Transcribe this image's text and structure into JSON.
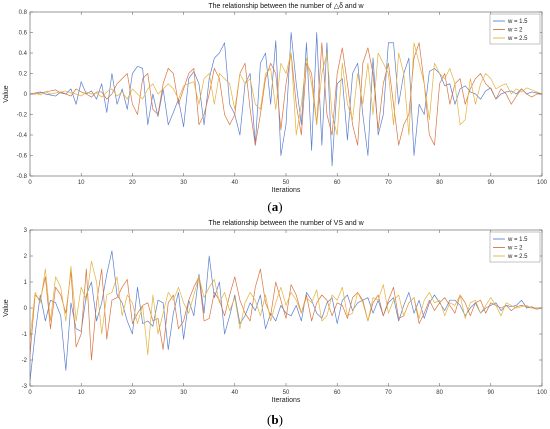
{
  "chart_data": [
    {
      "type": "line",
      "title": "The relationship between the number of △δ and w",
      "xlabel": "Iterations",
      "ylabel": "Value",
      "caption_letter": "a",
      "xlim": [
        0,
        100
      ],
      "ylim": [
        -0.8,
        0.8
      ],
      "xticks": [
        0,
        10,
        20,
        30,
        40,
        50,
        60,
        70,
        80,
        90,
        100
      ],
      "yticks": [
        -0.8,
        -0.6,
        -0.4,
        -0.2,
        0,
        0.2,
        0.4,
        0.6,
        0.8
      ],
      "grid": false,
      "legend_position": "top-right",
      "series": [
        {
          "name": "w = 1.5",
          "color": "#5b7fd1",
          "values": [
            0,
            0.01,
            0.02,
            0,
            -0.01,
            -0.02,
            0.02,
            0,
            0.05,
            -0.1,
            0.12,
            0,
            0.03,
            -0.05,
            0.1,
            -0.18,
            0.2,
            -0.1,
            0.05,
            -0.15,
            0.2,
            0.27,
            0.25,
            -0.3,
            0,
            -0.22,
            0.05,
            -0.3,
            -0.18,
            -0.05,
            -0.32,
            0.15,
            0.22,
            0.1,
            -0.3,
            0.15,
            0.35,
            0.4,
            0.5,
            -0.1,
            -0.2,
            -0.4,
            0.1,
            0.2,
            -0.5,
            0.3,
            0.4,
            -0.1,
            0.52,
            -0.6,
            -0.3,
            0.6,
            0.1,
            -0.3,
            0.5,
            -0.55,
            0.6,
            -0.5,
            0.5,
            -0.7,
            0.1,
            0.15,
            -0.45,
            0.2,
            0.3,
            -0.2,
            -0.6,
            0.35,
            -0.4,
            -0.2,
            0.5,
            0.5,
            -0.1,
            0.2,
            0.35,
            -0.6,
            -0.1,
            -0.2,
            0.22,
            0.25,
            0.2,
            0.08,
            0.1,
            -0.1,
            0.05,
            0.08,
            0.02,
            0,
            -0.05,
            0.03,
            0.06,
            -0.05,
            0,
            0.02,
            0.03,
            0,
            0.05,
            0,
            0.02,
            0.01,
            0
          ]
        },
        {
          "name": "w = 2",
          "color": "#d9733f",
          "values": [
            0,
            0,
            0.01,
            0.02,
            0.03,
            0.04,
            0.01,
            0,
            -0.02,
            0.05,
            0.02,
            0,
            -0.03,
            0.02,
            0.02,
            -0.05,
            0,
            0.1,
            0.15,
            0.2,
            -0.1,
            -0.2,
            0.15,
            0.2,
            -0.15,
            -0.2,
            0.1,
            0.25,
            0.2,
            -0.1,
            0.05,
            0.2,
            0.25,
            -0.3,
            -0.2,
            0,
            0.25,
            0.15,
            -0.2,
            -0.3,
            -0.2,
            0.2,
            0.3,
            -0.15,
            -0.5,
            -0.2,
            0.15,
            0.3,
            0.2,
            -0.35,
            0.1,
            0.4,
            -0.1,
            -0.4,
            0.3,
            0.2,
            -0.3,
            0.5,
            -0.2,
            -0.4,
            0.2,
            0.45,
            0.1,
            -0.3,
            -0.5,
            0.3,
            0.45,
            0.2,
            -0.35,
            0.1,
            0.3,
            -0.1,
            -0.5,
            -0.3,
            -0.2,
            0.35,
            0.5,
            0.1,
            -0.4,
            -0.5,
            0.1,
            0.2,
            -0.1,
            0.1,
            0.15,
            -0.1,
            0.05,
            0.15,
            0.2,
            0.1,
            0.05,
            -0.05,
            0.05,
            0,
            -0.1,
            -0.02,
            0.05,
            0,
            -0.03,
            0,
            0
          ]
        },
        {
          "name": "w = 2.5",
          "color": "#e3b23c",
          "values": [
            0,
            0.01,
            -0.01,
            0.02,
            0,
            0.01,
            0.02,
            0.03,
            0.01,
            0,
            -0.02,
            0.02,
            0,
            0.01,
            -0.03,
            0.02,
            0.05,
            -0.02,
            0.02,
            -0.05,
            0.05,
            0,
            -0.05,
            0.05,
            0.1,
            0,
            0.05,
            0.1,
            0.05,
            -0.05,
            0.08,
            0.1,
            0.12,
            -0.1,
            0.15,
            0.2,
            -0.1,
            0.2,
            0.15,
            0.1,
            -0.15,
            0.2,
            0.1,
            0.15,
            -0.1,
            -0.15,
            0.2,
            0.25,
            -0.15,
            0.3,
            0.2,
            0.4,
            -0.4,
            -0.1,
            0.35,
            0.1,
            -0.3,
            0.2,
            0.4,
            -0.2,
            -0.4,
            0.3,
            -0.1,
            -0.25,
            0.2,
            -0.1,
            0.3,
            -0.2,
            0.4,
            0.3,
            0.2,
            -0.3,
            0.4,
            0.2,
            -0.4,
            0.5,
            0.3,
            0.1,
            -0.25,
            0.3,
            0.2,
            0.15,
            0.25,
            0.1,
            -0.3,
            -0.25,
            0.15,
            -0.1,
            0.1,
            0.2,
            0.15,
            0.05,
            0.08,
            0.1,
            0,
            0.05,
            0.02,
            0.06,
            0.04,
            0.02,
            0
          ]
        }
      ]
    },
    {
      "type": "line",
      "title": "The relationship between the number of VS and w",
      "xlabel": "Iterations",
      "ylabel": "Value",
      "caption_letter": "b",
      "xlim": [
        0,
        100
      ],
      "ylim": [
        -3,
        3
      ],
      "xticks": [
        0,
        10,
        20,
        30,
        40,
        50,
        60,
        70,
        80,
        90,
        100
      ],
      "yticks": [
        -3,
        -2,
        -1,
        0,
        1,
        2,
        3
      ],
      "grid": false,
      "legend_position": "top-right",
      "series": [
        {
          "name": "w = 1.5",
          "color": "#5b7fd1",
          "values": [
            -2.8,
            -1,
            0.5,
            -0.5,
            0.3,
            0.2,
            -0.3,
            -2.4,
            0.2,
            -0.8,
            -0.9,
            0.5,
            1,
            -0.5,
            0.2,
            1.3,
            2.2,
            0.5,
            0.2,
            -0.5,
            -1,
            0.8,
            -0.6,
            -0.5,
            -0.7,
            0.3,
            0.2,
            -1.6,
            -0.2,
            0.6,
            -1.2,
            0.3,
            -0.3,
            1.3,
            -0.2,
            2,
            0.4,
            1,
            -1,
            -0.3,
            0.5,
            -0.6,
            -0.3,
            0.2,
            -0.1,
            0.5,
            -0.8,
            -0.2,
            -0.5,
            0.1,
            -0.2,
            -0.3,
            0.1,
            -0.5,
            0.6,
            0.3,
            -0.2,
            -0.4,
            0.2,
            0.4,
            -0.6,
            0.3,
            0.5,
            -0.1,
            0.2,
            0.3,
            0.4,
            -0.2,
            0.3,
            -0.3,
            0.2,
            0.4,
            -0.5,
            0.1,
            0.6,
            -0.2,
            0.3,
            -0.4,
            0.2,
            0.5,
            0.2,
            -0.1,
            0.3,
            0.3,
            0.1,
            -0.3,
            0,
            0.2,
            -0.2,
            0,
            0.1,
            0.2,
            -0.1,
            0.1,
            0.05,
            0.1,
            0.3,
            0,
            0.05,
            -0.05,
            0
          ]
        },
        {
          "name": "w = 2",
          "color": "#d9733f",
          "values": [
            -1.8,
            0.5,
            0.3,
            1.2,
            -0.8,
            0.8,
            0.5,
            -0.2,
            1.4,
            -1.5,
            -1,
            1.5,
            -2,
            0.2,
            1.5,
            -1.2,
            0.3,
            0.4,
            0.8,
            1.1,
            -0.6,
            -0.2,
            0.1,
            0.2,
            -0.5,
            -0.4,
            -1.6,
            0.2,
            0.5,
            -0.8,
            -0.5,
            0.3,
            0.8,
            1.2,
            -0.5,
            -0.4,
            0.6,
            0.3,
            -0.3,
            0.5,
            1.2,
            0.3,
            -0.2,
            -0.5,
            0.8,
            1.5,
            0.2,
            -0.3,
            1,
            0.3,
            -0.4,
            0.9,
            0.5,
            -0.2,
            0.5,
            -0.5,
            0.2,
            0.5,
            0.3,
            -0.3,
            0.2,
            0.1,
            -0.4,
            0.4,
            0.6,
            0.3,
            -0.5,
            0.2,
            0.5,
            -0.3,
            0.3,
            0.8,
            -0.4,
            -0.3,
            0.2,
            0.4,
            -0.6,
            -0.2,
            0.3,
            -0.1,
            0.2,
            0.4,
            0.1,
            -0.2,
            0.5,
            0.2,
            -0.3,
            0.2,
            0.3,
            -0.2,
            0.2,
            0.1,
            0,
            0.1,
            -0.1,
            0.05,
            0.1,
            0.05,
            0,
            0,
            0
          ]
        },
        {
          "name": "w = 2.5",
          "color": "#e3b23c",
          "values": [
            -1.2,
            0.6,
            0.2,
            1.5,
            -0.5,
            1.2,
            0.8,
            -0.5,
            1.6,
            -0.5,
            0.8,
            0.3,
            1.8,
            1,
            -1,
            0.5,
            0.6,
            1.2,
            -0.3,
            0.5,
            0.2,
            -0.6,
            0.1,
            -1.8,
            0.5,
            -1,
            -0.2,
            0.6,
            0.3,
            0.8,
            0.2,
            -0.2,
            0.5,
            1.2,
            0.4,
            0.8,
            1.1,
            0.2,
            0.6,
            -0.1,
            0.4,
            -0.8,
            0.2,
            0.6,
            0.3,
            -0.3,
            0.5,
            -0.5,
            0.2,
            0.8,
            0.1,
            0.6,
            0.3,
            -0.2,
            0.4,
            0.2,
            0.7,
            -0.5,
            -0.3,
            0.5,
            0.3,
            0.8,
            -0.3,
            -0.2,
            0.6,
            0.2,
            -0.5,
            0.4,
            0.3,
            0.9,
            -0.2,
            0.3,
            0.5,
            -0.3,
            0.2,
            0.4,
            -0.4,
            0.3,
            0.6,
            0.2,
            0.3,
            -0.3,
            0.2,
            0.1,
            0.5,
            -0.4,
            0.2,
            0.3,
            -0.2,
            0.1,
            0.4,
            0.1,
            -0.3,
            0.2,
            0.1,
            0,
            0.05,
            0.1,
            0,
            -0.05,
            0
          ]
        }
      ]
    }
  ]
}
